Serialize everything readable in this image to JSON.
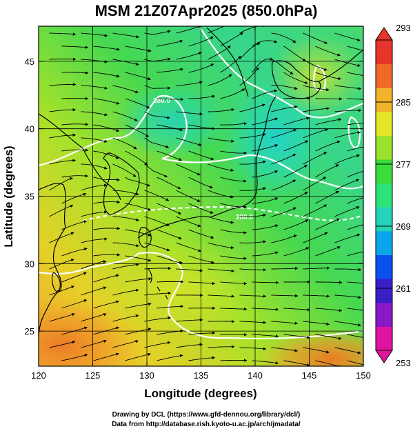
{
  "chart_data": {
    "type": "heatmap",
    "title": "MSM 21Z07Apr2025 (850.0hPa)",
    "xlabel": "Longitude (degrees)",
    "ylabel": "Latitude  (degrees)",
    "xlim": [
      120,
      150
    ],
    "ylim": [
      22.4,
      47.6
    ],
    "xticks": [
      "120",
      "125",
      "130",
      "135",
      "140",
      "145",
      "150"
    ],
    "yticks": [
      "25",
      "30",
      "35",
      "40",
      "45"
    ],
    "grid": true,
    "overlay": "streamlines and coastlines",
    "colorbar": {
      "range": [
        253,
        293
      ],
      "ticks": [
        "293",
        "285",
        "277",
        "269",
        "261",
        "253"
      ],
      "colors": [
        "#e0139e",
        "#8a17c8",
        "#3a1ec8",
        "#0a4ff0",
        "#0aa6ec",
        "#22d4b8",
        "#2ee27a",
        "#3ade3a",
        "#9be22a",
        "#e6e628",
        "#f2b22a",
        "#ee6a26",
        "#e8342a"
      ]
    },
    "contours": [
      {
        "value": 270.0,
        "label": "270.0"
      },
      {
        "value": 280.0,
        "label": "280.0"
      }
    ]
  },
  "credits": {
    "line1": "Drawing by DCL (https://www.gfd-dennou.org/library/dcl/)",
    "line2": "Data from http://database.rish.kyoto-u.ac.jp/arch/jmadata/"
  }
}
